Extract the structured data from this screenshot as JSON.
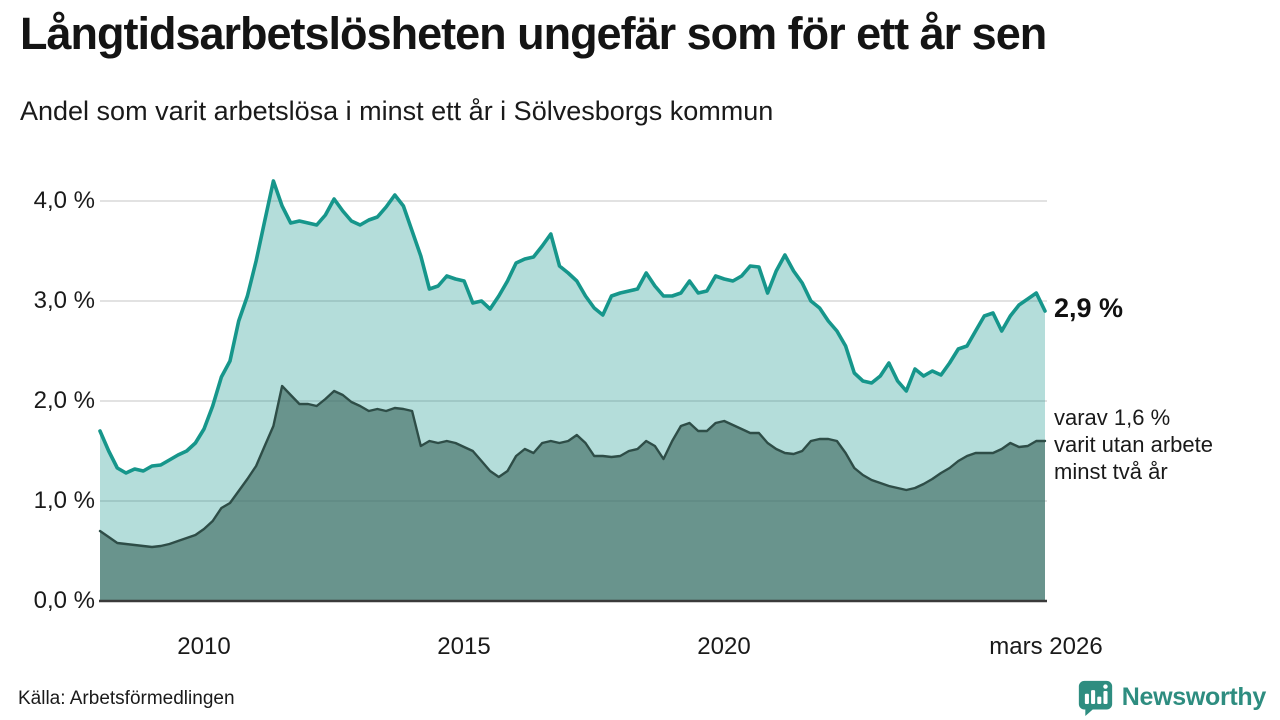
{
  "chart_data": {
    "type": "area",
    "title": "Långtidsarbetslösheten ungefär som för ett år sen",
    "subtitle": "Andel som varit arbetslösa i minst ett år i Sölvesborgs kommun",
    "xlabel": "",
    "ylabel": "",
    "x_start_year": 2008.0,
    "x_end_year": 2026.17,
    "x_step_years": 0.1667,
    "x_end_label": "mars 2026",
    "ylim": [
      0,
      4.2
    ],
    "grid": true,
    "y_ticks": [
      {
        "value": 4.0,
        "label": "4,0 %"
      },
      {
        "value": 3.0,
        "label": "3,0 %"
      },
      {
        "value": 2.0,
        "label": "2,0 %"
      },
      {
        "value": 1.0,
        "label": "1,0 %"
      },
      {
        "value": 0.0,
        "label": "0,0 %"
      }
    ],
    "x_ticks": [
      {
        "value": 2010,
        "label": "2010"
      },
      {
        "value": 2015,
        "label": "2015"
      },
      {
        "value": 2020,
        "label": "2020"
      },
      {
        "value": 2026.17,
        "label": "mars 2026"
      }
    ],
    "series": [
      {
        "name": "Andel arbetslösa minst ett år",
        "latest_value_label": "2,9 %",
        "color": "#16968b",
        "fill": "rgba(23,150,139,0.32)",
        "values": [
          1.7,
          1.5,
          1.33,
          1.28,
          1.32,
          1.3,
          1.35,
          1.36,
          1.41,
          1.46,
          1.5,
          1.58,
          1.72,
          1.95,
          2.24,
          2.4,
          2.8,
          3.05,
          3.4,
          3.8,
          4.2,
          3.95,
          3.78,
          3.8,
          3.78,
          3.76,
          3.86,
          4.02,
          3.9,
          3.8,
          3.76,
          3.81,
          3.84,
          3.94,
          4.06,
          3.95,
          3.7,
          3.45,
          3.12,
          3.15,
          3.25,
          3.22,
          3.2,
          2.98,
          3.0,
          2.92,
          3.05,
          3.2,
          3.38,
          3.42,
          3.44,
          3.55,
          3.67,
          3.35,
          3.28,
          3.2,
          3.05,
          2.93,
          2.86,
          3.05,
          3.08,
          3.1,
          3.12,
          3.28,
          3.15,
          3.05,
          3.05,
          3.08,
          3.2,
          3.08,
          3.1,
          3.25,
          3.22,
          3.2,
          3.25,
          3.35,
          3.34,
          3.08,
          3.3,
          3.46,
          3.3,
          3.18,
          3.0,
          2.93,
          2.8,
          2.7,
          2.55,
          2.28,
          2.2,
          2.18,
          2.25,
          2.38,
          2.2,
          2.1,
          2.32,
          2.25,
          2.3,
          2.26,
          2.38,
          2.52,
          2.55,
          2.7,
          2.85,
          2.88,
          2.7,
          2.85,
          2.96,
          3.02,
          3.08,
          2.9
        ]
      },
      {
        "name": "varav utan arbete minst två år",
        "latest_value_label": "1,6 %",
        "color": "#2e4d47",
        "fill": "rgba(60,103,93,0.62)",
        "values": [
          0.7,
          0.64,
          0.58,
          0.57,
          0.56,
          0.55,
          0.54,
          0.55,
          0.57,
          0.6,
          0.63,
          0.66,
          0.72,
          0.8,
          0.93,
          0.98,
          1.1,
          1.22,
          1.35,
          1.55,
          1.75,
          2.15,
          2.06,
          1.97,
          1.97,
          1.95,
          2.02,
          2.1,
          2.06,
          1.99,
          1.95,
          1.9,
          1.92,
          1.9,
          1.93,
          1.92,
          1.9,
          1.55,
          1.6,
          1.58,
          1.6,
          1.58,
          1.54,
          1.5,
          1.4,
          1.3,
          1.24,
          1.3,
          1.45,
          1.52,
          1.48,
          1.58,
          1.6,
          1.58,
          1.6,
          1.66,
          1.58,
          1.45,
          1.45,
          1.44,
          1.45,
          1.5,
          1.52,
          1.6,
          1.55,
          1.42,
          1.6,
          1.75,
          1.78,
          1.7,
          1.7,
          1.78,
          1.8,
          1.76,
          1.72,
          1.68,
          1.68,
          1.58,
          1.52,
          1.48,
          1.47,
          1.5,
          1.6,
          1.62,
          1.62,
          1.6,
          1.48,
          1.33,
          1.26,
          1.21,
          1.18,
          1.15,
          1.13,
          1.11,
          1.13,
          1.17,
          1.22,
          1.28,
          1.33,
          1.4,
          1.45,
          1.48,
          1.48,
          1.48,
          1.52,
          1.58,
          1.54,
          1.55,
          1.6,
          1.6
        ]
      }
    ],
    "annotations": {
      "latest_total": "2,9 %",
      "secondary_line1": "varav 1,6 %",
      "secondary_line2": "varit utan arbete",
      "secondary_line3": "minst två år"
    },
    "legend_position": "right-annotations"
  },
  "footer": {
    "source": "Källa: Arbetsförmedlingen",
    "brand": "Newsworthy"
  },
  "colors": {
    "line_primary": "#16968b",
    "fill_primary_light": "#b9ddd8",
    "line_secondary": "#2e4d47",
    "fill_secondary_dark": "#6e968f",
    "gridline": "#d8d8d8",
    "axis_baseline": "#3a3a3a",
    "brand_teal": "#2e8d80",
    "text": "#1a1a1a"
  }
}
